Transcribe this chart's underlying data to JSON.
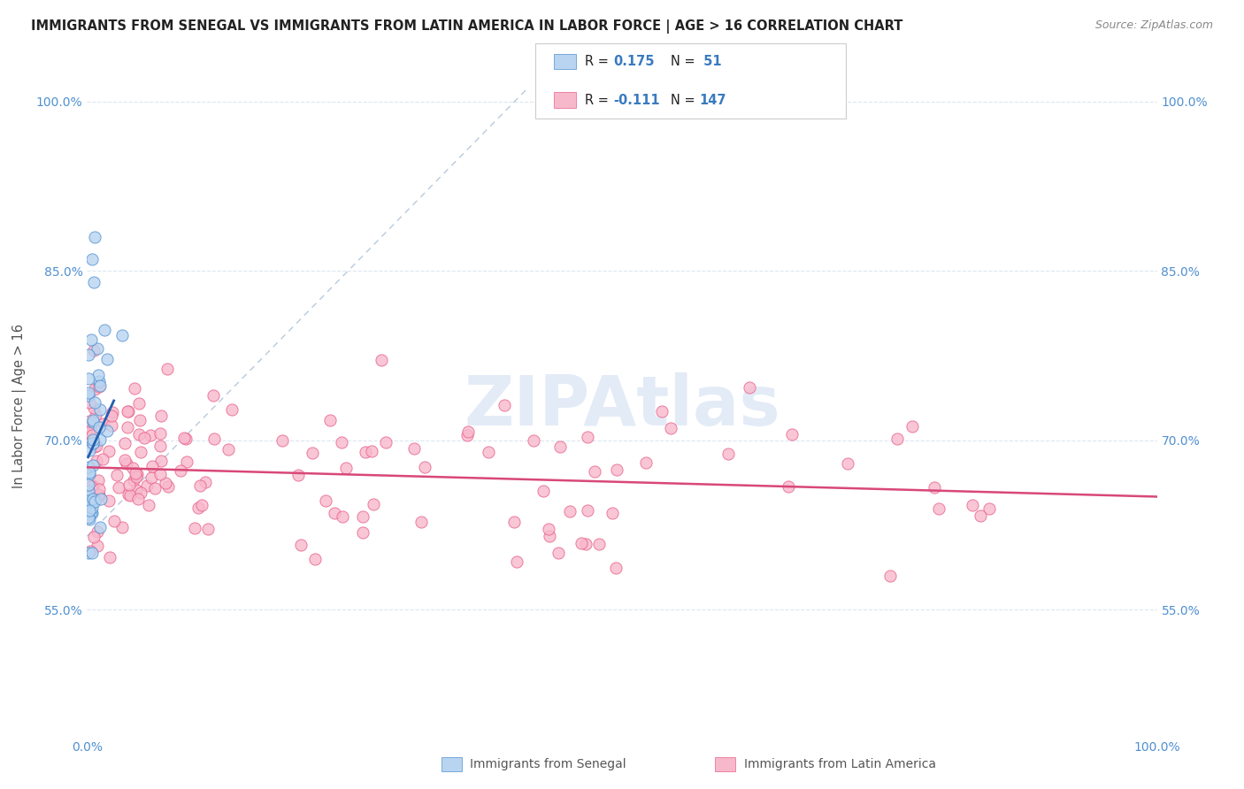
{
  "title": "IMMIGRANTS FROM SENEGAL VS IMMIGRANTS FROM LATIN AMERICA IN LABOR FORCE | AGE > 16 CORRELATION CHART",
  "source": "Source: ZipAtlas.com",
  "ylabel": "In Labor Force | Age > 16",
  "x_min": 0.0,
  "x_max": 1.0,
  "y_min": 0.44,
  "y_max": 1.02,
  "y_ticks": [
    0.55,
    0.7,
    0.85,
    1.0
  ],
  "y_tick_labels": [
    "55.0%",
    "70.0%",
    "85.0%",
    "100.0%"
  ],
  "color_senegal_fill": "#b8d4f0",
  "color_senegal_edge": "#5090d0",
  "color_latin_fill": "#f8b8cc",
  "color_latin_edge": "#e8608a",
  "color_senegal_line": "#2060b0",
  "color_latin_line": "#d84878",
  "color_diagonal": "#a0b8d0",
  "watermark_color": "#c8d8f0",
  "background_color": "#ffffff",
  "grid_color": "#d8e4f0",
  "tick_color": "#5090d0",
  "ylabel_color": "#555555",
  "title_color": "#222222",
  "source_color": "#888888",
  "legend_edge_color": "#cccccc",
  "legend_r_color": "#222222",
  "legend_n_color": "#3a7abf",
  "bottom_legend_color": "#555555",
  "senegal_trend_start_x": 0.001,
  "senegal_trend_end_x": 0.025,
  "senegal_trend_start_y": 0.685,
  "senegal_trend_end_y": 0.735,
  "latin_trend_start_x": 0.0,
  "latin_trend_end_x": 1.0,
  "latin_trend_start_y": 0.676,
  "latin_trend_end_y": 0.65
}
